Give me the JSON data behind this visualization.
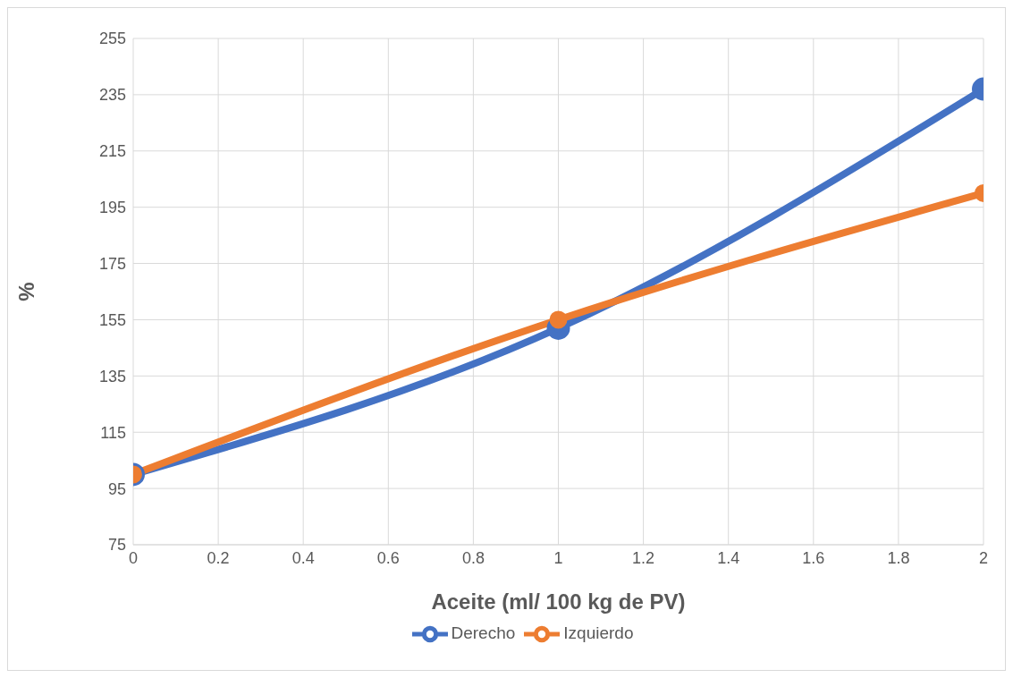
{
  "chart_data": {
    "type": "line",
    "xlabel": "Aceite (ml/ 100 kg de PV)",
    "ylabel": "%",
    "x": [
      0,
      1,
      2
    ],
    "series": [
      {
        "name": "Derecho",
        "color": "#4472c4",
        "values": [
          100,
          152,
          237
        ]
      },
      {
        "name": "Izquierdo",
        "color": "#ed7d31",
        "values": [
          100,
          155,
          200
        ]
      }
    ],
    "xlim": [
      0,
      2
    ],
    "xticks": [
      0,
      {
        "value": 0.2,
        "label": "0.2"
      },
      {
        "value": 0.4,
        "label": "0.4"
      },
      {
        "value": 0.6,
        "label": "0.6"
      },
      {
        "value": 0.8,
        "label": "0.8"
      },
      1,
      {
        "value": 1.2,
        "label": "1.2"
      },
      {
        "value": 1.4,
        "label": "1.4"
      },
      {
        "value": 1.6,
        "label": "1.6"
      },
      {
        "value": 1.8,
        "label": "1.8"
      },
      2
    ],
    "ylim": [
      75,
      255
    ],
    "yticks": [
      75,
      95,
      115,
      135,
      155,
      175,
      195,
      215,
      235,
      255
    ],
    "grid": true,
    "legend": "bottom",
    "marker": "circle",
    "line_style": "solid"
  }
}
